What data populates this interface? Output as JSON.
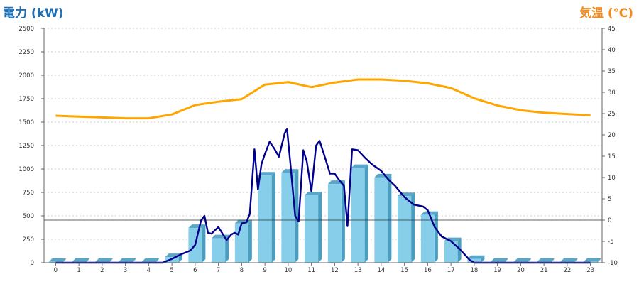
{
  "chart_data": {
    "type": "bar",
    "title_left": "電力 (kW)",
    "title_right": "気温 (℃)",
    "categories": [
      "0",
      "1",
      "2",
      "3",
      "4",
      "5",
      "6",
      "7",
      "8",
      "9",
      "10",
      "11",
      "12",
      "13",
      "14",
      "15",
      "16",
      "17",
      "18",
      "19",
      "20",
      "21",
      "22",
      "23"
    ],
    "y_left": {
      "range": [
        0,
        2500
      ],
      "ticks": [
        0,
        250,
        500,
        750,
        1000,
        1250,
        1500,
        1750,
        2000,
        2250,
        2500
      ]
    },
    "y_right": {
      "range": [
        -10,
        45
      ],
      "ticks": [
        -10,
        -5,
        0,
        5,
        10,
        15,
        20,
        25,
        30,
        35,
        40,
        45
      ]
    },
    "grid": true,
    "series": [
      {
        "kind": "bar",
        "axis": "left",
        "values": [
          10,
          10,
          10,
          10,
          10,
          60,
          370,
          260,
          420,
          930,
          960,
          720,
          840,
          1010,
          910,
          710,
          510,
          230,
          40,
          10,
          10,
          10,
          10,
          10
        ]
      },
      {
        "kind": "line",
        "axis": "left",
        "points": [
          [
            0,
            0
          ],
          [
            1,
            0
          ],
          [
            2,
            0
          ],
          [
            3,
            0
          ],
          [
            4,
            0
          ],
          [
            4.6,
            0
          ],
          [
            5,
            40
          ],
          [
            5.4,
            90
          ],
          [
            5.8,
            130
          ],
          [
            6,
            190
          ],
          [
            6.25,
            450
          ],
          [
            6.4,
            500
          ],
          [
            6.55,
            320
          ],
          [
            6.7,
            310
          ],
          [
            7,
            380
          ],
          [
            7.2,
            300
          ],
          [
            7.35,
            240
          ],
          [
            7.55,
            300
          ],
          [
            7.7,
            320
          ],
          [
            7.85,
            300
          ],
          [
            8,
            420
          ],
          [
            8.2,
            430
          ],
          [
            8.35,
            520
          ],
          [
            8.55,
            1210
          ],
          [
            8.7,
            780
          ],
          [
            8.85,
            1050
          ],
          [
            9,
            1160
          ],
          [
            9.2,
            1290
          ],
          [
            9.4,
            1220
          ],
          [
            9.6,
            1130
          ],
          [
            9.85,
            1380
          ],
          [
            9.95,
            1430
          ],
          [
            10.1,
            1050
          ],
          [
            10.3,
            500
          ],
          [
            10.45,
            440
          ],
          [
            10.65,
            1200
          ],
          [
            10.8,
            1080
          ],
          [
            11,
            760
          ],
          [
            11.2,
            1250
          ],
          [
            11.35,
            1300
          ],
          [
            11.55,
            1150
          ],
          [
            11.8,
            950
          ],
          [
            12,
            950
          ],
          [
            12.2,
            880
          ],
          [
            12.4,
            820
          ],
          [
            12.55,
            390
          ],
          [
            12.75,
            1210
          ],
          [
            13,
            1200
          ],
          [
            13.3,
            1120
          ],
          [
            13.6,
            1050
          ],
          [
            14,
            980
          ],
          [
            14.3,
            890
          ],
          [
            14.6,
            820
          ],
          [
            15,
            700
          ],
          [
            15.4,
            620
          ],
          [
            15.8,
            600
          ],
          [
            16,
            560
          ],
          [
            16.3,
            380
          ],
          [
            16.6,
            280
          ],
          [
            17,
            230
          ],
          [
            17.4,
            140
          ],
          [
            17.8,
            30
          ],
          [
            18,
            0
          ],
          [
            19,
            0
          ],
          [
            20,
            0
          ],
          [
            21,
            0
          ],
          [
            22,
            0
          ],
          [
            23,
            0
          ]
        ]
      },
      {
        "kind": "line",
        "axis": "right",
        "values": [
          24.5,
          24.3,
          24.1,
          23.9,
          23.9,
          24.8,
          27.0,
          27.8,
          28.4,
          31.8,
          32.4,
          31.2,
          32.3,
          33.0,
          33.0,
          32.7,
          32.1,
          31.0,
          28.6,
          26.9,
          25.8,
          25.2,
          24.9,
          24.6
        ]
      }
    ],
    "colors": {
      "bar_front": "#87CEEB",
      "bar_side": "#4A9EC0",
      "bar_top": "#5AA6C8",
      "power_line": "#00008B",
      "temp_line": "#FFA500",
      "title_left": "#1E6FB4",
      "title_right": "#F28A20",
      "grid": "#bbbbbb",
      "zero_line": "#333333"
    }
  }
}
